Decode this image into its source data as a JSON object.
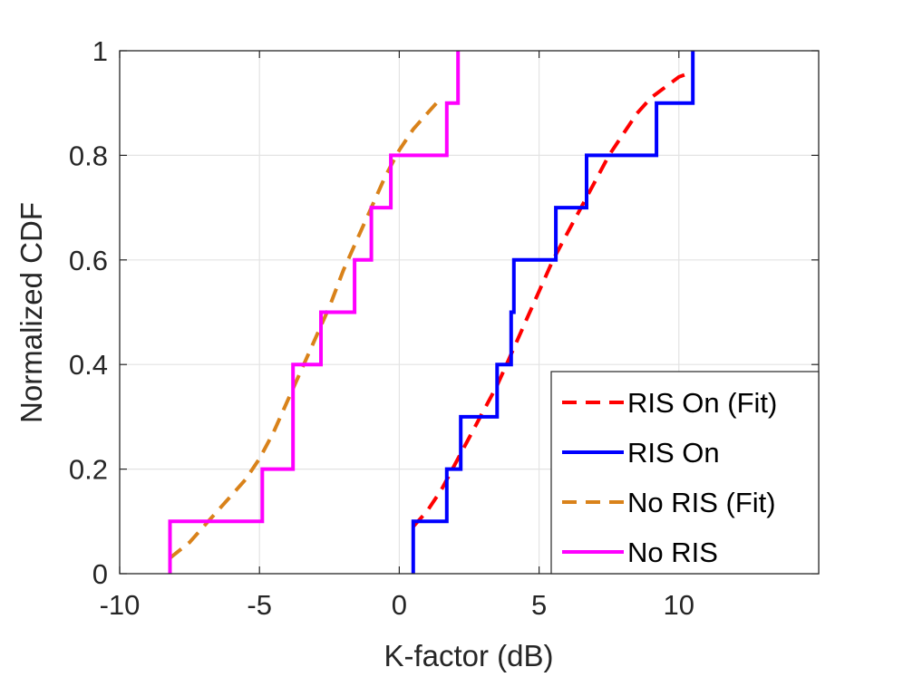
{
  "chart_data": {
    "type": "line",
    "xlabel": "K-factor (dB)",
    "ylabel": "Normalized CDF",
    "xlim": [
      -10,
      15
    ],
    "ylim": [
      0,
      1
    ],
    "x_ticks": [
      -10,
      -5,
      0,
      5,
      10
    ],
    "x_tick_labels": [
      "-10",
      "-5",
      "0",
      "5",
      "10"
    ],
    "y_ticks": [
      0,
      0.2,
      0.4,
      0.6,
      0.8,
      1
    ],
    "y_tick_labels": [
      "0",
      "0.2",
      "0.4",
      "0.6",
      "0.8",
      "1"
    ],
    "grid": true,
    "legend_position": "bottom-right",
    "series": [
      {
        "name": "RIS On (Fit)",
        "color": "#ff0000",
        "style": "dashed",
        "x": [
          0.5,
          1.0,
          1.5,
          2.0,
          2.5,
          3.0,
          3.5,
          4.0,
          4.5,
          5.0,
          5.5,
          6.0,
          6.5,
          7.0,
          7.5,
          8.0,
          8.5,
          9.0,
          9.5,
          10.0,
          10.5
        ],
        "y": [
          0.09,
          0.12,
          0.16,
          0.21,
          0.26,
          0.31,
          0.36,
          0.42,
          0.48,
          0.54,
          0.6,
          0.65,
          0.7,
          0.75,
          0.8,
          0.84,
          0.88,
          0.91,
          0.93,
          0.95,
          0.96
        ]
      },
      {
        "name": "RIS On",
        "color": "#0000ff",
        "style": "step",
        "x": [
          0.5,
          0.5,
          1.7,
          1.7,
          2.2,
          2.2,
          3.5,
          3.5,
          4.0,
          4.0,
          4.1,
          4.1,
          5.6,
          5.6,
          6.7,
          6.7,
          9.2,
          9.2,
          10.5,
          10.5
        ],
        "y": [
          0.0,
          0.1,
          0.1,
          0.2,
          0.2,
          0.3,
          0.3,
          0.4,
          0.4,
          0.5,
          0.5,
          0.6,
          0.6,
          0.7,
          0.7,
          0.8,
          0.8,
          0.9,
          0.9,
          1.0
        ]
      },
      {
        "name": "No RIS (Fit)",
        "color": "#d9821a",
        "style": "dashed",
        "x": [
          -8.2,
          -7.5,
          -7.0,
          -6.5,
          -6.0,
          -5.5,
          -5.0,
          -4.5,
          -4.0,
          -3.5,
          -3.0,
          -2.5,
          -2.0,
          -1.5,
          -1.0,
          -0.5,
          0.0,
          0.5,
          1.0,
          1.5
        ],
        "y": [
          0.03,
          0.06,
          0.09,
          0.12,
          0.15,
          0.18,
          0.22,
          0.27,
          0.33,
          0.39,
          0.45,
          0.51,
          0.58,
          0.64,
          0.7,
          0.76,
          0.81,
          0.85,
          0.88,
          0.91
        ]
      },
      {
        "name": "No RIS",
        "color": "#ff00ff",
        "style": "step",
        "x": [
          -8.2,
          -8.2,
          -4.9,
          -4.9,
          -3.8,
          -3.8,
          -2.8,
          -2.8,
          -1.6,
          -1.6,
          -1.0,
          -1.0,
          -0.3,
          -0.3,
          1.7,
          1.7,
          2.1,
          2.1
        ],
        "y": [
          0.0,
          0.1,
          0.1,
          0.2,
          0.2,
          0.4,
          0.4,
          0.5,
          0.5,
          0.6,
          0.6,
          0.7,
          0.7,
          0.8,
          0.8,
          0.9,
          0.9,
          1.0
        ]
      }
    ]
  }
}
